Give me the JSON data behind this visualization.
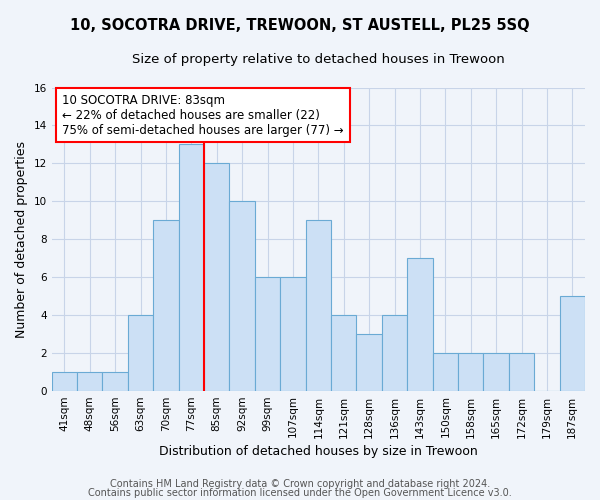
{
  "title": "10, SOCOTRA DRIVE, TREWOON, ST AUSTELL, PL25 5SQ",
  "subtitle": "Size of property relative to detached houses in Trewoon",
  "xlabel": "Distribution of detached houses by size in Trewoon",
  "ylabel": "Number of detached properties",
  "categories": [
    "41sqm",
    "48sqm",
    "56sqm",
    "63sqm",
    "70sqm",
    "77sqm",
    "85sqm",
    "92sqm",
    "99sqm",
    "107sqm",
    "114sqm",
    "121sqm",
    "128sqm",
    "136sqm",
    "143sqm",
    "150sqm",
    "158sqm",
    "165sqm",
    "172sqm",
    "179sqm",
    "187sqm"
  ],
  "values": [
    1,
    1,
    1,
    4,
    9,
    13,
    12,
    10,
    6,
    6,
    9,
    4,
    3,
    4,
    7,
    2,
    2,
    2,
    2,
    0,
    5
  ],
  "bar_color": "#cce0f5",
  "bar_edge_color": "#6aaad4",
  "red_line_index": 6,
  "annotation_text_line1": "10 SOCOTRA DRIVE: 83sqm",
  "annotation_text_line2": "← 22% of detached houses are smaller (22)",
  "annotation_text_line3": "75% of semi-detached houses are larger (77) →",
  "annotation_box_color": "white",
  "annotation_box_edge_color": "red",
  "red_line_color": "red",
  "ylim": [
    0,
    16
  ],
  "yticks": [
    0,
    2,
    4,
    6,
    8,
    10,
    12,
    14,
    16
  ],
  "footer_line1": "Contains HM Land Registry data © Crown copyright and database right 2024.",
  "footer_line2": "Contains public sector information licensed under the Open Government Licence v3.0.",
  "title_fontsize": 10.5,
  "subtitle_fontsize": 9.5,
  "axis_label_fontsize": 9,
  "tick_fontsize": 7.5,
  "annotation_fontsize": 8.5,
  "footer_fontsize": 7,
  "bg_color": "#f0f4fa",
  "plot_bg_color": "#f0f4fa",
  "grid_color": "#c8d4e8",
  "spine_color": "#aabbcc"
}
